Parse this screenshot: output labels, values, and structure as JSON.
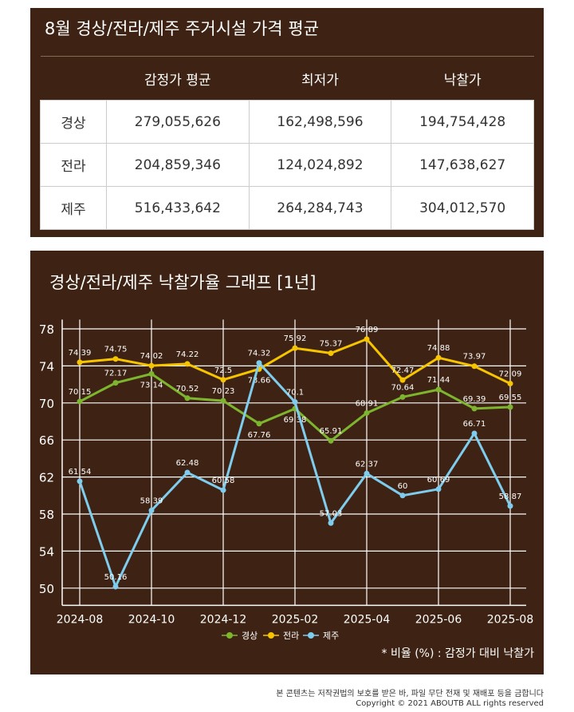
{
  "table": {
    "title": "8월 경상/전라/제주 주거시설 가격 평균",
    "headers": [
      "감정가 평균",
      "최저가",
      "낙찰가"
    ],
    "rows": [
      [
        "경상",
        "279,055,626",
        "162,498,596",
        "194,754,428"
      ],
      [
        "전라",
        "204,859,346",
        "124,024,892",
        "147,638,627"
      ],
      [
        "제주",
        "516,433,642",
        "264,284,743",
        "304,012,570"
      ]
    ]
  },
  "chart_data": {
    "type": "line",
    "title": "경상/전라/제주 낙찰가율 그래프 [1년]",
    "x": [
      "2024-08",
      "2024-09",
      "2024-10",
      "2024-11",
      "2024-12",
      "2025-01",
      "2025-02",
      "2025-03",
      "2025-04",
      "2025-05",
      "2025-06",
      "2025-07",
      "2025-08"
    ],
    "xticks": [
      "2024-08",
      "2024-10",
      "2024-12",
      "2025-02",
      "2025-04",
      "2025-06",
      "2025-08"
    ],
    "yticks": [
      50,
      54,
      58,
      62,
      66,
      70,
      74,
      78
    ],
    "ylim": [
      49,
      79
    ],
    "grid": true,
    "legend": "bottom",
    "series": [
      {
        "name": "경상",
        "color": "#7db52f",
        "values": [
          70.15,
          72.17,
          73.14,
          70.52,
          70.23,
          67.76,
          69.38,
          65.91,
          68.91,
          70.64,
          71.44,
          69.39,
          69.55
        ]
      },
      {
        "name": "전라",
        "color": "#f6c500",
        "values": [
          74.39,
          74.75,
          74.02,
          74.22,
          72.5,
          73.66,
          75.92,
          75.37,
          76.89,
          72.47,
          74.88,
          73.97,
          72.09
        ]
      },
      {
        "name": "제주",
        "color": "#7fcdee",
        "values": [
          61.54,
          50.16,
          58.39,
          62.48,
          60.58,
          74.32,
          70.1,
          57.03,
          62.37,
          60,
          60.69,
          66.71,
          58.87
        ]
      }
    ],
    "note": "* 비율 (%) : 감정가 대비 낙찰가"
  },
  "footer": {
    "line1": "본 콘텐츠는 저작권법의 보호를 받은 바, 파일 무단 전재 및 재배포 등을 금합니다",
    "line2": "Copyright © 2021 ABOUTB ALL rights reserved"
  }
}
